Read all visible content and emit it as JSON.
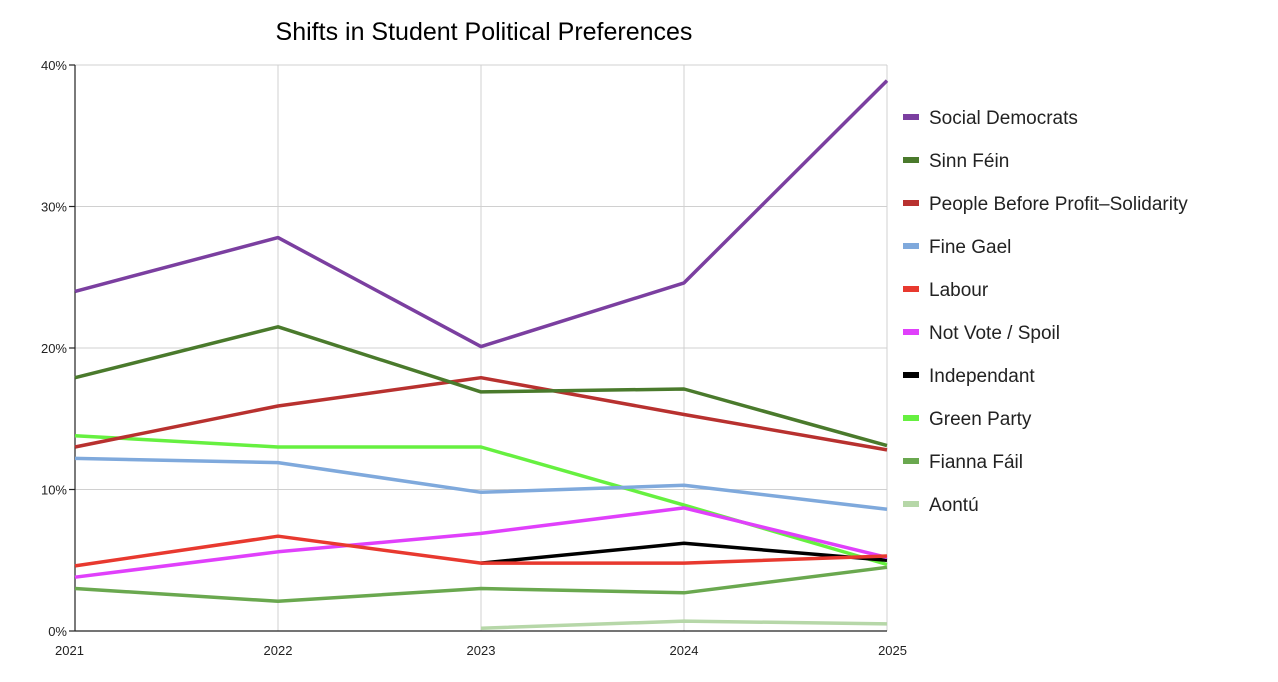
{
  "chart_data": {
    "type": "line",
    "title": "Shifts in Student Political Preferences",
    "xlabel": "",
    "ylabel": "",
    "x": [
      "2021",
      "2022",
      "2023",
      "2024",
      "2025"
    ],
    "ylim": [
      0,
      40
    ],
    "y_ticks": [
      0,
      10,
      20,
      30,
      40
    ],
    "y_tick_labels": [
      "0%",
      "10%",
      "20%",
      "30%",
      "40%"
    ],
    "grid": true,
    "legend_position": "right",
    "series": [
      {
        "name": "Social Democrats",
        "color": "#7b3fa0",
        "values": [
          24.0,
          27.8,
          20.1,
          24.6,
          38.9
        ]
      },
      {
        "name": "Sinn Féin",
        "color": "#4a7a2c",
        "values": [
          17.9,
          21.5,
          16.9,
          17.1,
          13.1
        ]
      },
      {
        "name": "People Before Profit–Solidarity",
        "color": "#b8312f",
        "values": [
          13.0,
          15.9,
          17.9,
          15.3,
          12.8
        ]
      },
      {
        "name": "Fine Gael",
        "color": "#7fa9dc",
        "values": [
          12.2,
          11.9,
          9.8,
          10.3,
          8.6
        ]
      },
      {
        "name": "Labour",
        "color": "#e8392f",
        "values": [
          4.6,
          6.7,
          4.8,
          4.8,
          5.3
        ]
      },
      {
        "name": "Not Vote / Spoil",
        "color": "#e040fb",
        "values": [
          3.8,
          5.6,
          6.9,
          8.7,
          5.2
        ]
      },
      {
        "name": "Independant",
        "color": "#000000",
        "values": [
          null,
          null,
          4.8,
          6.2,
          5.0
        ]
      },
      {
        "name": "Green Party",
        "color": "#66f040",
        "values": [
          13.8,
          13.0,
          13.0,
          8.9,
          4.7
        ]
      },
      {
        "name": "Fianna Fáil",
        "color": "#6aa84f",
        "values": [
          3.0,
          2.1,
          3.0,
          2.7,
          4.5
        ]
      },
      {
        "name": "Aontú",
        "color": "#b6d7a8",
        "values": [
          null,
          null,
          0.2,
          0.7,
          0.5
        ]
      }
    ]
  }
}
